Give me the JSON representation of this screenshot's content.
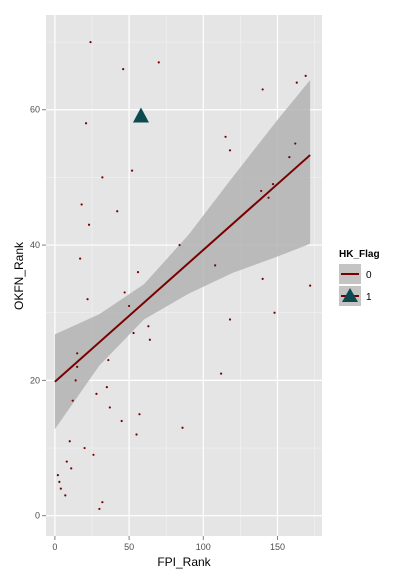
{
  "chart_data": {
    "type": "scatter",
    "title": "",
    "xlabel": "FPI_Rank",
    "ylabel": "OKFN_Rank",
    "xlim": [
      -6,
      180
    ],
    "ylim": [
      -3,
      74
    ],
    "x_ticks": [
      0,
      50,
      100,
      150
    ],
    "y_ticks": [
      0,
      20,
      40,
      60
    ],
    "x_tick_labels": [
      "0",
      "50",
      "100",
      "150"
    ],
    "y_tick_labels": [
      "0",
      "20",
      "40",
      "60"
    ],
    "grid": true,
    "legend": {
      "title": "HK_Flag",
      "placement": "right",
      "entries": [
        {
          "label": "0",
          "color": "#7a0000",
          "shape": "line"
        },
        {
          "label": "1",
          "color": "#0d4a4f",
          "shape": "triangle"
        }
      ]
    },
    "series": [
      {
        "name": "0",
        "color": "#7a0000",
        "points": [
          [
            24,
            70
          ],
          [
            46,
            66
          ],
          [
            70,
            67
          ],
          [
            169,
            65
          ],
          [
            163,
            64
          ],
          [
            140,
            63
          ],
          [
            21,
            58
          ],
          [
            115,
            56
          ],
          [
            162,
            55
          ],
          [
            118,
            54
          ],
          [
            158,
            53
          ],
          [
            52,
            51
          ],
          [
            32,
            50
          ],
          [
            147,
            49
          ],
          [
            139,
            48
          ],
          [
            144,
            47
          ],
          [
            18,
            46
          ],
          [
            42,
            45
          ],
          [
            23,
            43
          ],
          [
            84,
            40
          ],
          [
            17,
            38
          ],
          [
            108,
            37
          ],
          [
            56,
            36
          ],
          [
            140,
            35
          ],
          [
            172,
            34
          ],
          [
            47,
            33
          ],
          [
            22,
            32
          ],
          [
            50,
            31
          ],
          [
            148,
            30
          ],
          [
            118,
            29
          ],
          [
            63,
            28
          ],
          [
            53,
            27
          ],
          [
            64,
            26
          ],
          [
            15,
            24
          ],
          [
            36,
            23
          ],
          [
            15,
            22
          ],
          [
            112,
            21
          ],
          [
            14,
            20
          ],
          [
            35,
            19
          ],
          [
            28,
            18
          ],
          [
            12,
            17
          ],
          [
            37,
            16
          ],
          [
            57,
            15
          ],
          [
            45,
            14
          ],
          [
            86,
            13
          ],
          [
            55,
            12
          ],
          [
            10,
            11
          ],
          [
            20,
            10
          ],
          [
            26,
            9
          ],
          [
            8,
            8
          ],
          [
            11,
            7
          ],
          [
            2,
            6
          ],
          [
            3,
            5
          ],
          [
            4,
            4
          ],
          [
            7,
            3
          ],
          [
            32,
            2
          ],
          [
            30,
            1
          ]
        ]
      },
      {
        "name": "1",
        "color": "#0d4a4f",
        "points": [
          [
            58,
            59
          ]
        ]
      }
    ],
    "fit_line": {
      "x": [
        0,
        172
      ],
      "y": [
        19.8,
        53.3
      ],
      "color": "#7a0000"
    },
    "confidence_band": {
      "x": [
        0,
        30,
        60,
        90,
        120,
        150,
        172
      ],
      "lower": [
        12.8,
        22.2,
        29.0,
        32.8,
        35.9,
        38.3,
        40.2
      ],
      "upper": [
        26.8,
        29.8,
        34.2,
        41.5,
        50.1,
        58.5,
        64.4
      ],
      "color": "#b3b3b3"
    }
  },
  "colors": {
    "panel_background": "#e5e5e5",
    "grid_major": "#ffffff"
  }
}
